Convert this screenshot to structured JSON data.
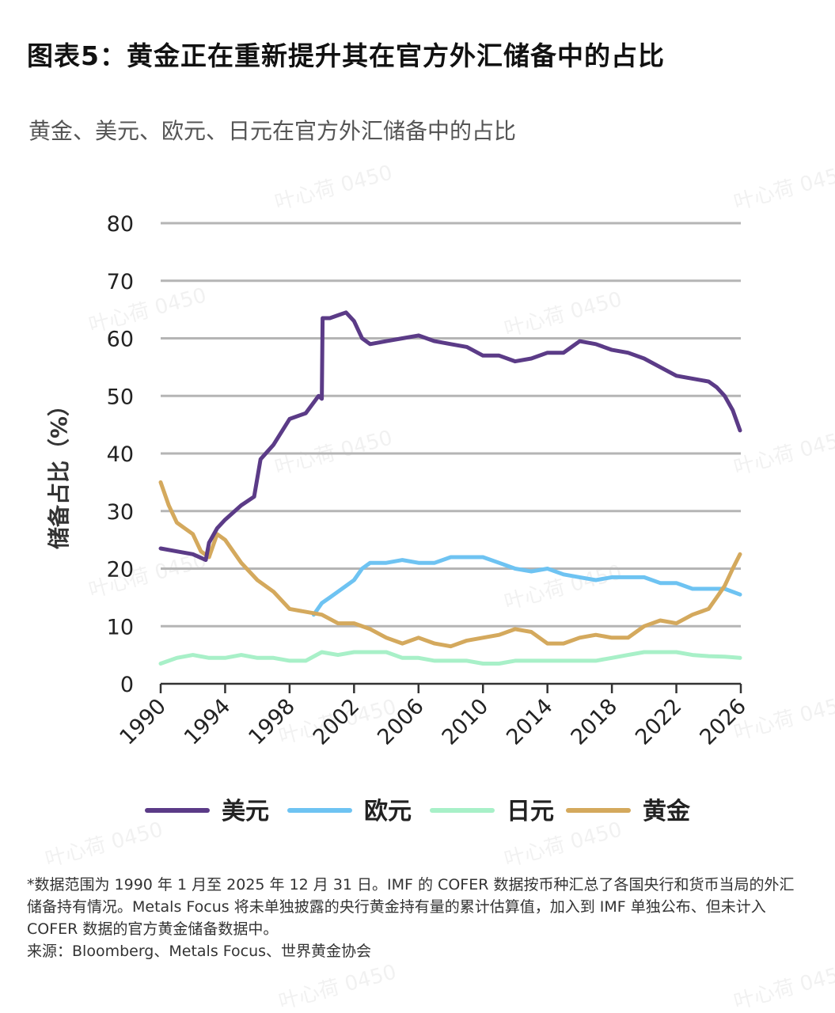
{
  "header": {
    "title": "图表5：黄金正在重新提升其在官方外汇储备中的占比",
    "subtitle": "黄金、美元、欧元、日元在官方外汇储备中的占比"
  },
  "footnote": {
    "lines": [
      "*数据范围为 1990 年 1 月至 2025 年 12 月 31 日。IMF 的 COFER 数据按币种汇总了各国央行和货币当局的外汇储备持有情况。Metals Focus 将未单独披露的央行黄金持有量的累计估算值，加入到 IMF 单独公布、但未计入 COFER 数据的官方黄金储备数据中。",
      "来源：Bloomberg、Metals Focus、世界黄金协会"
    ]
  },
  "watermark": {
    "text": "叶心荷 0450"
  },
  "chart_data": {
    "type": "line",
    "title": "黄金、美元、欧元、日元在官方外汇储备中的占比",
    "xlabel": "",
    "ylabel": "储备占比（%）",
    "xlim": [
      1990,
      2026
    ],
    "ylim": [
      0,
      80
    ],
    "xticks": [
      "1990",
      "1994",
      "1998",
      "2002",
      "2006",
      "2010",
      "2014",
      "2018",
      "2022",
      "2026"
    ],
    "yticks": [
      "0",
      "10",
      "20",
      "30",
      "40",
      "50",
      "60",
      "70",
      "80"
    ],
    "grid": true,
    "legend_position": "bottom",
    "series": [
      {
        "name": "美元",
        "color": "#5b3b87",
        "x": [
          1990,
          1991,
          1992,
          1992.8,
          1993,
          1993.5,
          1994,
          1995,
          1995.8,
          1996.2,
          1997,
          1998,
          1999,
          1999.8,
          2000.0,
          2000.05,
          2000.5,
          2001,
          2001.5,
          2002,
          2002.5,
          2003,
          2004,
          2005,
          2006,
          2007,
          2008,
          2009,
          2010,
          2011,
          2012,
          2013,
          2014,
          2015,
          2016,
          2017,
          2018,
          2019,
          2020,
          2021,
          2022,
          2023,
          2024,
          2024.5,
          2025,
          2025.5,
          2025.95
        ],
        "values": [
          23.5,
          23,
          22.5,
          21.5,
          24.5,
          27,
          28.5,
          31,
          32.5,
          39,
          41.5,
          46,
          47,
          50,
          49.5,
          63.5,
          63.5,
          64,
          64.5,
          63,
          60,
          59,
          59.5,
          60,
          60.5,
          59.5,
          59,
          58.5,
          57,
          57,
          56,
          56.5,
          57.5,
          57.5,
          59.5,
          59,
          58,
          57.5,
          56.5,
          55,
          53.5,
          53,
          52.5,
          51.5,
          50,
          47.5,
          44
        ]
      },
      {
        "name": "欧元",
        "color": "#6ec3f2",
        "x": [
          1999.5,
          2000,
          2000.5,
          2001,
          2001.5,
          2002,
          2002.5,
          2003,
          2004,
          2005,
          2006,
          2007,
          2008,
          2009,
          2010,
          2011,
          2012,
          2013,
          2014,
          2015,
          2016,
          2017,
          2018,
          2019,
          2020,
          2021,
          2022,
          2023,
          2024,
          2025,
          2025.95
        ],
        "values": [
          12,
          14,
          15,
          16,
          17,
          18,
          20,
          21,
          21,
          21.5,
          21,
          21,
          22,
          22,
          22,
          21,
          20,
          19.5,
          20,
          19,
          18.5,
          18,
          18.5,
          18.5,
          18.5,
          17.5,
          17.5,
          16.5,
          16.5,
          16.5,
          15.5
        ]
      },
      {
        "name": "日元",
        "color": "#a8f0c8",
        "x": [
          1990,
          1991,
          1992,
          1993,
          1994,
          1995,
          1996,
          1997,
          1998,
          1999,
          2000,
          2001,
          2002,
          2003,
          2004,
          2005,
          2006,
          2007,
          2008,
          2009,
          2010,
          2011,
          2012,
          2013,
          2014,
          2015,
          2016,
          2017,
          2018,
          2019,
          2020,
          2021,
          2022,
          2023,
          2024,
          2025,
          2025.95
        ],
        "values": [
          3.5,
          4.5,
          5,
          4.5,
          4.5,
          5,
          4.5,
          4.5,
          4,
          4,
          5.5,
          5,
          5.5,
          5.5,
          5.5,
          4.5,
          4.5,
          4,
          4,
          4,
          3.5,
          3.5,
          4,
          4,
          4,
          4,
          4,
          4,
          4.5,
          5,
          5.5,
          5.5,
          5.5,
          5,
          4.8,
          4.7,
          4.5
        ]
      },
      {
        "name": "黄金",
        "color": "#d4a95d",
        "x": [
          1990,
          1990.5,
          1991,
          1991.5,
          1992,
          1992.5,
          1993,
          1993.5,
          1994,
          1995,
          1996,
          1997,
          1998,
          1999,
          2000,
          2001,
          2002,
          2003,
          2004,
          2005,
          2006,
          2007,
          2008,
          2009,
          2010,
          2011,
          2012,
          2013,
          2014,
          2015,
          2016,
          2017,
          2018,
          2019,
          2020,
          2021,
          2022,
          2023,
          2024,
          2024.5,
          2025,
          2025.5,
          2025.95
        ],
        "values": [
          35,
          31,
          28,
          27,
          26,
          23,
          22,
          26,
          25,
          21,
          18,
          16,
          13,
          12.5,
          12,
          10.5,
          10.5,
          9.5,
          8,
          7,
          8,
          7,
          6.5,
          7.5,
          8,
          8.5,
          9.5,
          9,
          7,
          7,
          8,
          8.5,
          8,
          8,
          10,
          11,
          10.5,
          12,
          13,
          15,
          17,
          20,
          22.5
        ]
      }
    ]
  }
}
